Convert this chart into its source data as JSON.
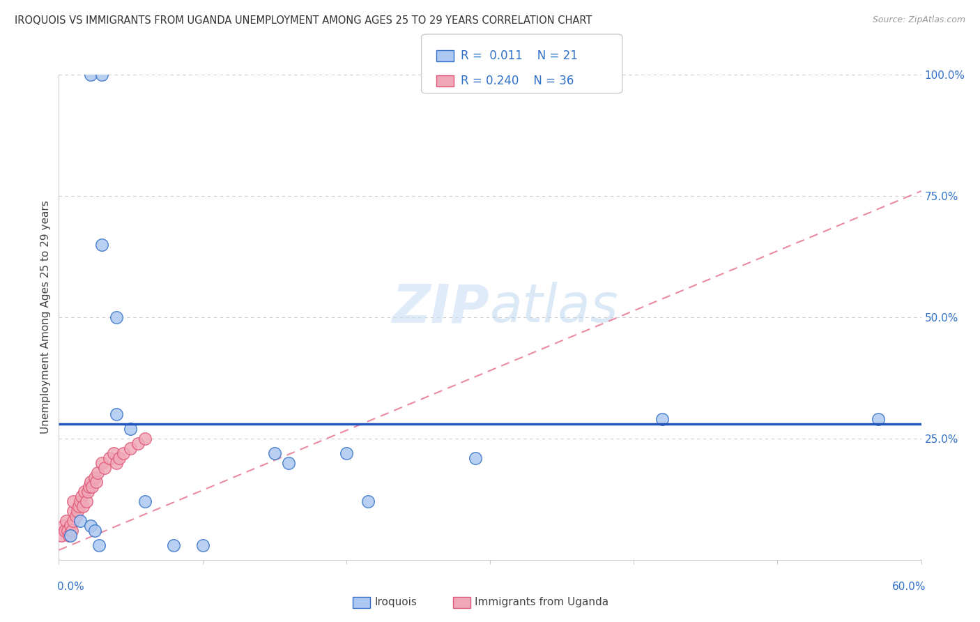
{
  "title": "IROQUOIS VS IMMIGRANTS FROM UGANDA UNEMPLOYMENT AMONG AGES 25 TO 29 YEARS CORRELATION CHART",
  "source": "Source: ZipAtlas.com",
  "ylabel": "Unemployment Among Ages 25 to 29 years",
  "xlim": [
    0.0,
    0.6
  ],
  "ylim": [
    0.0,
    1.0
  ],
  "xtick_labels": [
    "0.0%",
    "",
    "",
    "",
    "",
    "",
    "60.0%"
  ],
  "xtick_values": [
    0.0,
    0.1,
    0.2,
    0.3,
    0.4,
    0.5,
    0.6
  ],
  "ytick_labels": [
    "100.0%",
    "75.0%",
    "50.0%",
    "25.0%"
  ],
  "ytick_values": [
    1.0,
    0.75,
    0.5,
    0.25
  ],
  "iroquois_R": "0.011",
  "iroquois_N": "21",
  "uganda_R": "0.240",
  "uganda_N": "36",
  "iroquois_color": "#adc8f0",
  "iroquois_edge_color": "#3070c8",
  "uganda_color": "#f0a8b8",
  "uganda_edge_color": "#e05878",
  "iroquois_line_color": "#2255bb",
  "uganda_line_color": "#e05878",
  "iroquois_x": [
    0.022,
    0.03,
    0.03,
    0.04,
    0.04,
    0.05,
    0.06,
    0.08,
    0.1,
    0.15,
    0.16,
    0.2,
    0.215,
    0.29,
    0.42,
    0.57,
    0.008,
    0.015,
    0.022,
    0.025,
    0.028
  ],
  "iroquois_y": [
    1.0,
    1.0,
    0.65,
    0.5,
    0.3,
    0.27,
    0.12,
    0.03,
    0.03,
    0.22,
    0.2,
    0.22,
    0.12,
    0.21,
    0.29,
    0.29,
    0.05,
    0.08,
    0.07,
    0.06,
    0.03
  ],
  "uganda_x": [
    0.002,
    0.003,
    0.004,
    0.005,
    0.006,
    0.007,
    0.008,
    0.009,
    0.01,
    0.01,
    0.01,
    0.012,
    0.013,
    0.014,
    0.015,
    0.016,
    0.017,
    0.018,
    0.019,
    0.02,
    0.021,
    0.022,
    0.023,
    0.025,
    0.026,
    0.027,
    0.03,
    0.032,
    0.035,
    0.038,
    0.04,
    0.042,
    0.045,
    0.05,
    0.055,
    0.06
  ],
  "uganda_y": [
    0.05,
    0.07,
    0.06,
    0.08,
    0.06,
    0.05,
    0.07,
    0.06,
    0.08,
    0.1,
    0.12,
    0.09,
    0.1,
    0.11,
    0.12,
    0.13,
    0.11,
    0.14,
    0.12,
    0.14,
    0.15,
    0.16,
    0.15,
    0.17,
    0.16,
    0.18,
    0.2,
    0.19,
    0.21,
    0.22,
    0.2,
    0.21,
    0.22,
    0.23,
    0.24,
    0.25
  ],
  "iroquois_trend": [
    0.0,
    0.6
  ],
  "iroquois_trend_y": [
    0.28,
    0.28
  ],
  "uganda_trend": [
    0.0,
    0.6
  ],
  "uganda_trend_y": [
    0.02,
    0.76
  ]
}
